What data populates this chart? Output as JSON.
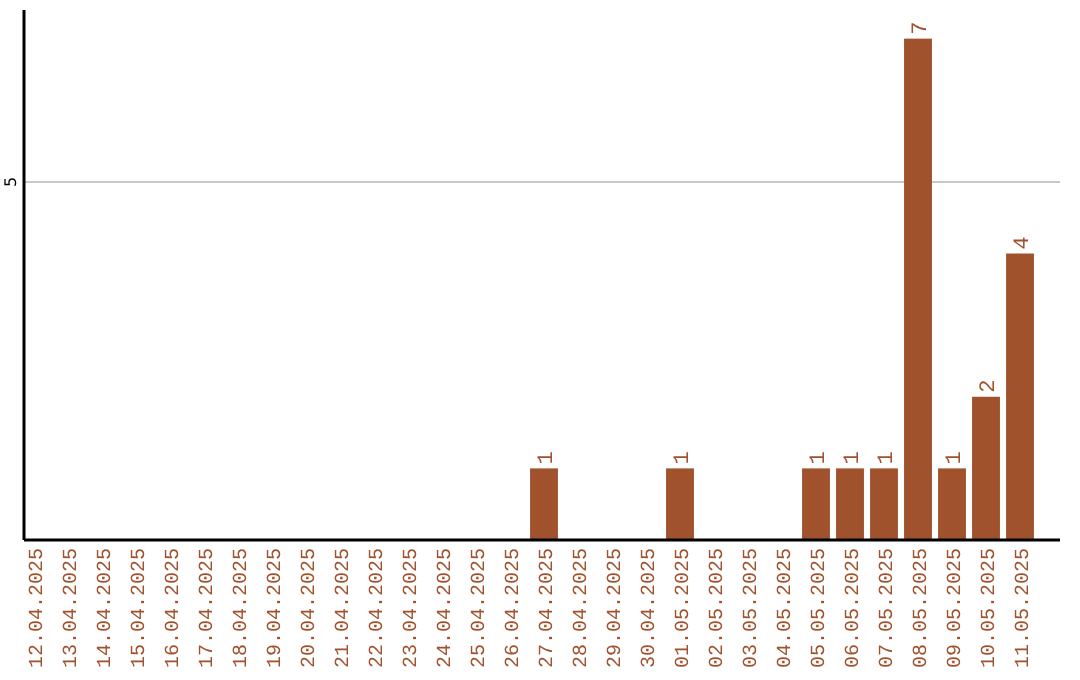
{
  "chart_data": {
    "type": "bar",
    "categories": [
      "12.04.2025",
      "13.04.2025",
      "14.04.2025",
      "15.04.2025",
      "16.04.2025",
      "17.04.2025",
      "18.04.2025",
      "19.04.2025",
      "20.04.2025",
      "21.04.2025",
      "22.04.2025",
      "23.04.2025",
      "24.04.2025",
      "25.04.2025",
      "26.04.2025",
      "27.04.2025",
      "28.04.2025",
      "29.04.2025",
      "30.04.2025",
      "01.05.2025",
      "02.05.2025",
      "03.05.2025",
      "04.05.2025",
      "05.05.2025",
      "06.05.2025",
      "07.05.2025",
      "08.05.2025",
      "09.05.2025",
      "10.05.2025",
      "11.05.2025"
    ],
    "values": [
      null,
      null,
      null,
      null,
      null,
      null,
      null,
      null,
      null,
      null,
      null,
      null,
      null,
      null,
      null,
      1,
      null,
      null,
      null,
      1,
      null,
      null,
      null,
      1,
      1,
      1,
      7,
      1,
      2,
      4
    ],
    "color": "#a0522d",
    "ylim": [
      0,
      7.4
    ],
    "yticks": [
      5
    ],
    "grid": "y",
    "data_labels": true
  }
}
